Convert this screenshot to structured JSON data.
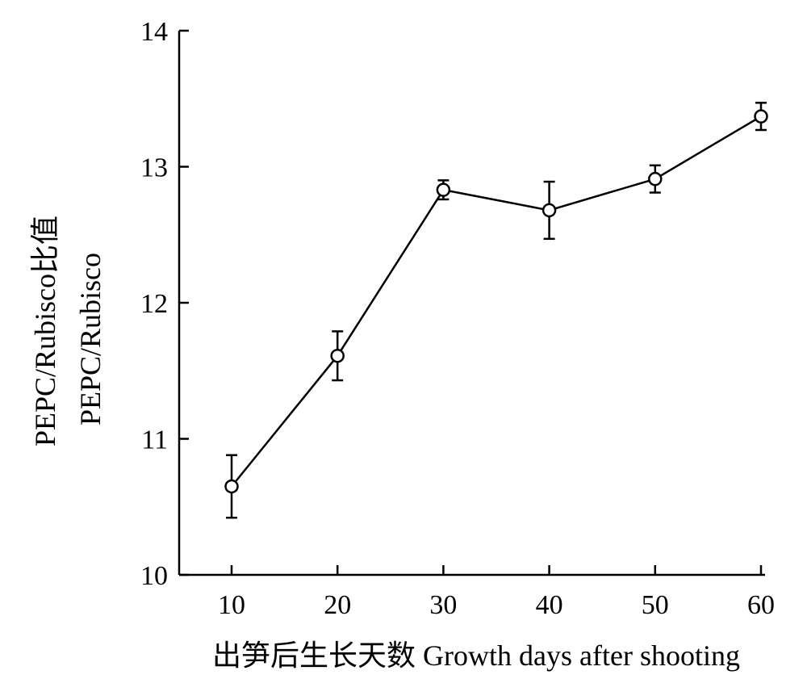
{
  "chart_data": {
    "type": "line",
    "title": "",
    "xlabel": "出笋后生长天数 Growth days after shooting",
    "ylabel_line1": "PEPC/Rubisco比值",
    "ylabel_line2": "PEPC/Rubisco",
    "xlim": [
      10,
      60
    ],
    "ylim": [
      10,
      14
    ],
    "xticks": [
      10,
      20,
      30,
      40,
      50,
      60
    ],
    "yticks": [
      10,
      11,
      12,
      13,
      14
    ],
    "grid": false,
    "legend": "none",
    "series": [
      {
        "x": [
          10,
          20,
          30,
          40,
          50,
          60
        ],
        "y": [
          10.65,
          11.61,
          12.83,
          12.68,
          12.91,
          13.37
        ],
        "err_low": [
          0.23,
          0.18,
          0.07,
          0.21,
          0.1,
          0.1
        ],
        "err_high": [
          0.23,
          0.18,
          0.07,
          0.21,
          0.1,
          0.1
        ]
      }
    ],
    "colors": {
      "line": "#000000",
      "marker_fill": "#ffffff"
    }
  }
}
